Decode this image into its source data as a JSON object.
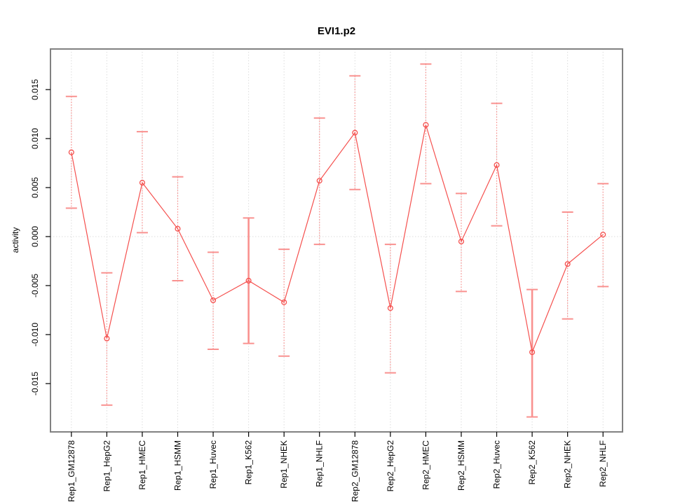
{
  "window": {
    "background": "#ffffff"
  },
  "chart_data": {
    "type": "line",
    "title": "EVI1.p2",
    "xlabel": "",
    "ylabel": "activity",
    "categories": [
      "Rep1_GM12878",
      "Rep1_HepG2",
      "Rep1_HMEC",
      "Rep1_HSMM",
      "Rep1_Huvec",
      "Rep1_K562",
      "Rep1_NHEK",
      "Rep1_NHLF",
      "Rep2_GM12878",
      "Rep2_HepG2",
      "Rep2_HMEC",
      "Rep2_HSMM",
      "Rep2_Huvec",
      "Rep2_K562",
      "Rep2_NHEK",
      "Rep2_NHLF"
    ],
    "series": [
      {
        "name": "activity",
        "values": [
          0.0086,
          -0.0104,
          0.0055,
          0.0008,
          -0.0065,
          -0.0045,
          -0.0067,
          0.0057,
          0.0106,
          -0.0073,
          0.0114,
          -0.0005,
          0.0073,
          -0.0118,
          -0.0028,
          0.0002
        ],
        "error_high": [
          0.0143,
          -0.0037,
          0.0107,
          0.0061,
          -0.0016,
          0.0019,
          -0.0013,
          0.0121,
          0.0164,
          -0.0008,
          0.0176,
          0.0044,
          0.0136,
          -0.0054,
          0.0025,
          0.0054
        ],
        "error_low": [
          0.0029,
          -0.0172,
          0.0004,
          -0.0045,
          -0.0115,
          -0.0109,
          -0.0122,
          -0.0008,
          0.0048,
          -0.0139,
          0.0054,
          -0.0056,
          0.0011,
          -0.0184,
          -0.0084,
          -0.0051
        ]
      }
    ],
    "solid_bar_categories": [
      "Rep1_K562",
      "Rep2_K562"
    ],
    "yticks": [
      0.015,
      0.01,
      0.005,
      0.0,
      -0.005,
      -0.01,
      -0.015
    ],
    "ytick_labels": [
      "0.015",
      "0.010",
      "0.005",
      "0.000",
      "-0.005",
      "-0.010",
      "-0.015"
    ],
    "ylim": [
      -0.01993,
      0.01914
    ],
    "xlim": [
      0.41,
      16.55
    ],
    "grid": {
      "vertical_per_category": true,
      "zero_line_dotted": true
    },
    "legend": null,
    "colors": {
      "line": "#f5504e",
      "point": "#f5504e",
      "error_bar": "#f9918f",
      "grid": "#dcdcdc",
      "box": "#818181",
      "tick": "#000000",
      "text": "#000000",
      "background": "#ffffff"
    }
  }
}
